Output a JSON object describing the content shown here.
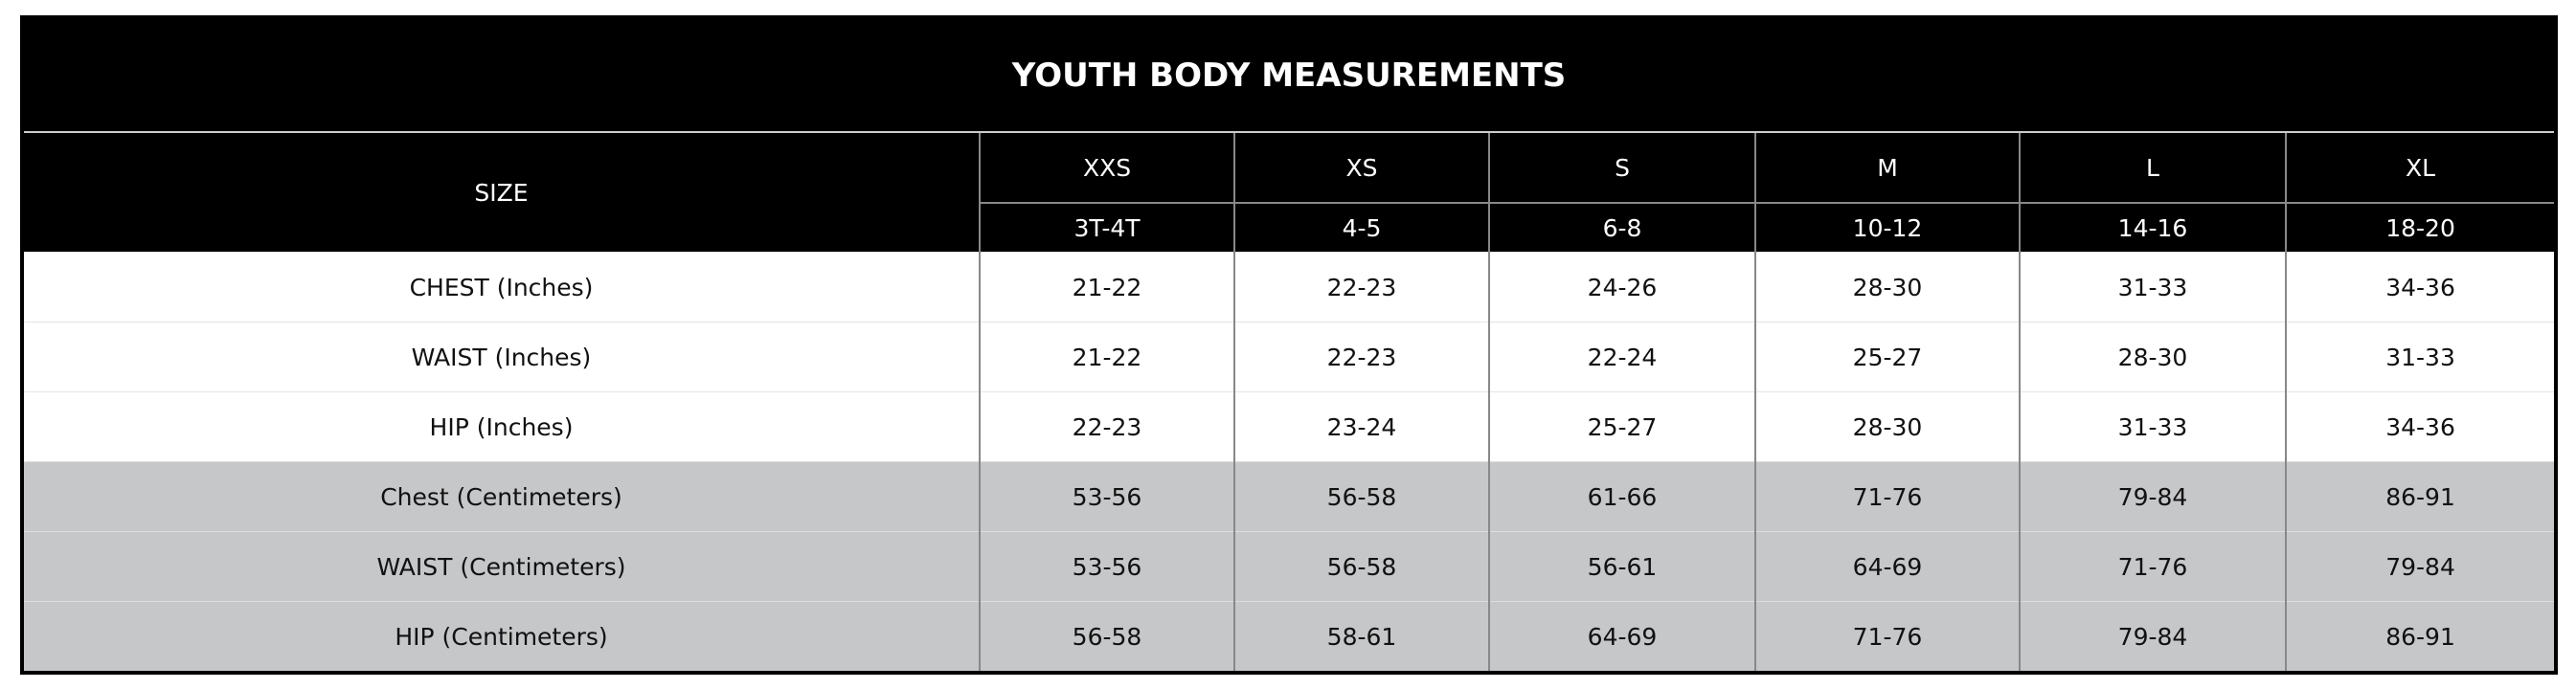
{
  "table": {
    "title": "YOUTH BODY MEASUREMENTS",
    "size_label": "SIZE",
    "sizes": [
      "XXS",
      "XS",
      "S",
      "M",
      "L",
      "XL"
    ],
    "ages": [
      "3T-4T",
      "4-5",
      "6-8",
      "10-12",
      "14-16",
      "18-20"
    ],
    "rows": [
      {
        "label": "CHEST (Inches)",
        "values": [
          "21-22",
          "22-23",
          "24-26",
          "28-30",
          "31-33",
          "34-36"
        ]
      },
      {
        "label": "WAIST (Inches)",
        "values": [
          "21-22",
          "22-23",
          "22-24",
          "25-27",
          "28-30",
          "31-33"
        ]
      },
      {
        "label": "HIP (Inches)",
        "values": [
          "22-23",
          "23-24",
          "25-27",
          "28-30",
          "31-33",
          "34-36"
        ]
      },
      {
        "label": "Chest (Centimeters)",
        "values": [
          "53-56",
          "56-58",
          "61-66",
          "71-76",
          "79-84",
          "86-91"
        ]
      },
      {
        "label": "WAIST (Centimeters)",
        "values": [
          "53-56",
          "56-58",
          "56-61",
          "64-69",
          "71-76",
          "79-84"
        ]
      },
      {
        "label": "HIP (Centimeters)",
        "values": [
          "56-58",
          "58-61",
          "64-69",
          "71-76",
          "79-84",
          "86-91"
        ]
      }
    ]
  }
}
